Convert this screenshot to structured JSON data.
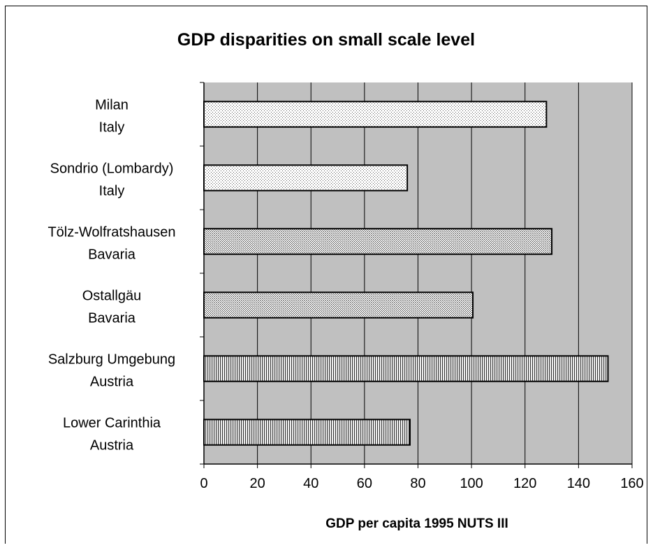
{
  "chart_data": {
    "type": "bar",
    "orientation": "horizontal",
    "title": "GDP disparities on small scale level",
    "xlabel": "GDP per capita 1995 NUTS III",
    "ylabel": "",
    "xlim": [
      0,
      160
    ],
    "xticks": [
      0,
      20,
      40,
      60,
      80,
      100,
      120,
      140,
      160
    ],
    "grid": "vertical",
    "background": "#c0c0c0",
    "categories": [
      {
        "line1": "Milan",
        "line2": "Italy",
        "value": 128,
        "pattern": "dots-fine"
      },
      {
        "line1": "Sondrio (Lombardy)",
        "line2": "Italy",
        "value": 76,
        "pattern": "dots-fine"
      },
      {
        "line1": "Tölz-Wolfratshausen",
        "line2": "Bavaria",
        "value": 130,
        "pattern": "dots-dense"
      },
      {
        "line1": "Ostallgäu",
        "line2": "Bavaria",
        "value": 100.5,
        "pattern": "dots-dense"
      },
      {
        "line1": "Salzburg Umgebung",
        "line2": "Austria",
        "value": 151,
        "pattern": "vertical-lines"
      },
      {
        "line1": "Lower Carinthia",
        "line2": "Austria",
        "value": 77,
        "pattern": "vertical-lines"
      }
    ]
  }
}
